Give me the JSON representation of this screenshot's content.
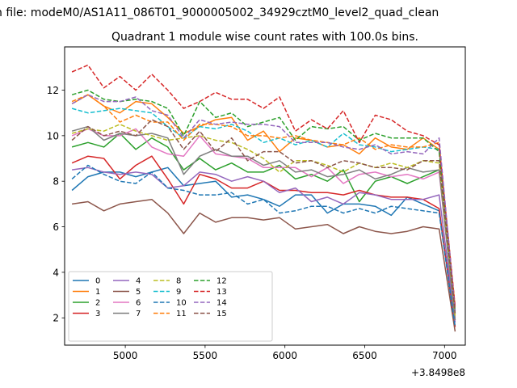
{
  "figure": {
    "suptitle": "n file: modeM0/AS1A11_086T01_9000005002_34929cztM0_level2_quad_clean"
  },
  "chart_data": {
    "type": "line",
    "title": "Quadrant 1 module wise count rates with 100.0s bins.",
    "xlabel": "",
    "ylabel": "",
    "x_offset_label": "+3.8498e8",
    "xlim": [
      4620,
      7130
    ],
    "ylim": [
      0.8,
      13.9
    ],
    "xticks": [
      5000,
      5500,
      6000,
      6500,
      7000
    ],
    "yticks": [
      2,
      4,
      6,
      8,
      10,
      12
    ],
    "grid": false,
    "legend": {
      "placement": "lower-left",
      "columns": 5
    },
    "x": [
      4666,
      4766,
      4866,
      4966,
      5066,
      5166,
      5266,
      5366,
      5466,
      5566,
      5666,
      5766,
      5866,
      5966,
      6066,
      6166,
      6266,
      6366,
      6466,
      6566,
      6666,
      6766,
      6866,
      6966,
      7066
    ],
    "series": [
      {
        "name": "0",
        "color": "#1f77b4",
        "dash": "solid",
        "values": [
          7.6,
          8.2,
          8.4,
          8.4,
          8.2,
          8.4,
          8.6,
          7.8,
          7.9,
          8.0,
          7.3,
          7.4,
          7.2,
          6.9,
          7.4,
          7.4,
          6.6,
          7.0,
          7.0,
          6.9,
          6.5,
          7.3,
          7.0,
          6.7,
          1.6
        ]
      },
      {
        "name": "1",
        "color": "#ff7f0e",
        "dash": "solid",
        "values": [
          11.4,
          11.8,
          11.3,
          11.0,
          11.5,
          11.4,
          10.8,
          10.1,
          10.4,
          10.7,
          10.8,
          9.8,
          10.2,
          9.3,
          9.9,
          9.8,
          9.5,
          9.6,
          9.2,
          9.9,
          9.5,
          9.4,
          9.9,
          9.4,
          2.5
        ]
      },
      {
        "name": "2",
        "color": "#2ca02c",
        "dash": "solid",
        "values": [
          9.5,
          9.7,
          9.5,
          10.1,
          9.4,
          9.9,
          9.5,
          8.5,
          9.0,
          8.5,
          8.8,
          8.4,
          8.4,
          8.7,
          8.1,
          8.3,
          8.0,
          8.5,
          7.1,
          8.0,
          8.2,
          7.9,
          8.2,
          8.5,
          1.9
        ]
      },
      {
        "name": "3",
        "color": "#d62728",
        "dash": "solid",
        "values": [
          8.8,
          9.1,
          9.0,
          8.1,
          8.7,
          9.1,
          8.1,
          7.0,
          8.3,
          8.1,
          7.7,
          7.7,
          8.0,
          7.6,
          7.6,
          7.5,
          7.5,
          7.4,
          7.6,
          7.4,
          7.3,
          7.3,
          7.2,
          6.8,
          1.6
        ]
      },
      {
        "name": "4",
        "color": "#9467bd",
        "dash": "solid",
        "values": [
          8.5,
          8.6,
          8.4,
          8.3,
          8.4,
          8.3,
          7.7,
          7.8,
          8.4,
          8.3,
          8.0,
          8.2,
          8.0,
          7.5,
          7.7,
          7.1,
          7.3,
          7.0,
          7.5,
          7.4,
          7.2,
          7.2,
          7.2,
          7.4,
          1.8
        ]
      },
      {
        "name": "5",
        "color": "#8c564b",
        "dash": "solid",
        "values": [
          7.0,
          7.1,
          6.7,
          7.0,
          7.1,
          7.2,
          6.6,
          5.7,
          6.6,
          6.2,
          6.4,
          6.4,
          6.3,
          6.4,
          5.9,
          6.0,
          6.1,
          5.7,
          6.0,
          5.8,
          5.7,
          5.8,
          6.0,
          5.9,
          1.4
        ]
      },
      {
        "name": "6",
        "color": "#e377c2",
        "dash": "solid",
        "values": [
          10.0,
          10.3,
          10.0,
          10.0,
          10.3,
          9.5,
          9.2,
          9.1,
          10.0,
          9.2,
          9.1,
          9.0,
          8.6,
          8.6,
          8.6,
          8.2,
          8.6,
          7.9,
          8.3,
          8.4,
          8.2,
          8.3,
          8.1,
          8.4,
          2.0
        ]
      },
      {
        "name": "7",
        "color": "#7f7f7f",
        "dash": "solid",
        "values": [
          10.2,
          10.4,
          9.8,
          10.1,
          10.0,
          10.1,
          9.9,
          8.3,
          9.1,
          9.4,
          9.1,
          9.1,
          8.7,
          8.9,
          8.4,
          8.5,
          8.2,
          8.3,
          8.5,
          8.1,
          8.3,
          8.6,
          8.4,
          8.5,
          1.9
        ]
      },
      {
        "name": "8",
        "color": "#bcbd22",
        "dash": "dashed",
        "values": [
          10.1,
          10.3,
          10.2,
          10.5,
          10.2,
          10.0,
          9.8,
          9.9,
          10.0,
          9.8,
          9.7,
          9.4,
          9.0,
          8.4,
          8.9,
          8.9,
          8.7,
          8.4,
          8.8,
          8.6,
          8.8,
          8.6,
          8.9,
          8.8,
          2.1
        ]
      },
      {
        "name": "9",
        "color": "#17becf",
        "dash": "dashed",
        "values": [
          11.2,
          11.0,
          11.1,
          11.2,
          11.1,
          11.0,
          10.4,
          9.9,
          10.4,
          10.3,
          10.5,
          10.2,
          9.7,
          9.9,
          9.6,
          9.8,
          9.5,
          10.1,
          9.6,
          9.5,
          9.3,
          9.4,
          9.5,
          9.4,
          2.2
        ]
      },
      {
        "name": "10",
        "color": "#1f77b4",
        "dash": "dashed",
        "values": [
          8.1,
          8.7,
          8.3,
          8.0,
          7.9,
          8.4,
          7.7,
          7.6,
          7.4,
          7.4,
          7.5,
          7.0,
          7.2,
          6.6,
          6.7,
          6.9,
          6.9,
          6.6,
          6.8,
          6.6,
          6.9,
          6.8,
          6.7,
          6.6,
          1.6
        ]
      },
      {
        "name": "11",
        "color": "#ff7f0e",
        "dash": "dashed",
        "values": [
          11.5,
          11.8,
          11.3,
          10.6,
          10.9,
          10.6,
          10.6,
          9.8,
          10.5,
          10.5,
          10.4,
          10.0,
          10.0,
          9.9,
          10.0,
          9.8,
          9.7,
          9.6,
          9.9,
          9.4,
          9.6,
          9.5,
          9.5,
          9.7,
          2.4
        ]
      },
      {
        "name": "12",
        "color": "#2ca02c",
        "dash": "dashed",
        "values": [
          11.8,
          12.0,
          11.6,
          11.5,
          11.6,
          11.5,
          11.2,
          10.0,
          11.5,
          10.8,
          11.0,
          10.4,
          10.6,
          10.8,
          9.8,
          10.4,
          10.3,
          10.4,
          9.8,
          10.1,
          9.9,
          9.9,
          9.9,
          9.3,
          2.3
        ]
      },
      {
        "name": "13",
        "color": "#d62728",
        "dash": "dashed",
        "values": [
          12.8,
          13.1,
          12.1,
          12.6,
          12.0,
          12.7,
          12.0,
          11.2,
          11.5,
          11.9,
          11.6,
          11.6,
          11.2,
          11.7,
          10.2,
          10.7,
          10.3,
          11.1,
          9.7,
          10.9,
          10.7,
          10.2,
          10.0,
          9.6,
          2.5
        ]
      },
      {
        "name": "14",
        "color": "#9467bd",
        "dash": "dashed",
        "values": [
          11.4,
          11.8,
          11.5,
          11.5,
          11.7,
          11.1,
          10.9,
          9.9,
          10.7,
          10.5,
          10.6,
          10.5,
          10.5,
          10.4,
          9.7,
          9.7,
          9.7,
          9.5,
          9.4,
          9.6,
          9.2,
          9.3,
          9.2,
          9.9,
          2.3
        ]
      },
      {
        "name": "15",
        "color": "#8c564b",
        "dash": "dashed",
        "values": [
          9.8,
          10.4,
          10.0,
          10.2,
          10.0,
          10.7,
          10.4,
          9.4,
          10.2,
          9.3,
          9.9,
          8.9,
          9.3,
          9.3,
          8.8,
          8.9,
          8.6,
          8.9,
          8.8,
          8.6,
          8.6,
          8.5,
          8.9,
          8.9,
          2.2
        ]
      }
    ]
  }
}
